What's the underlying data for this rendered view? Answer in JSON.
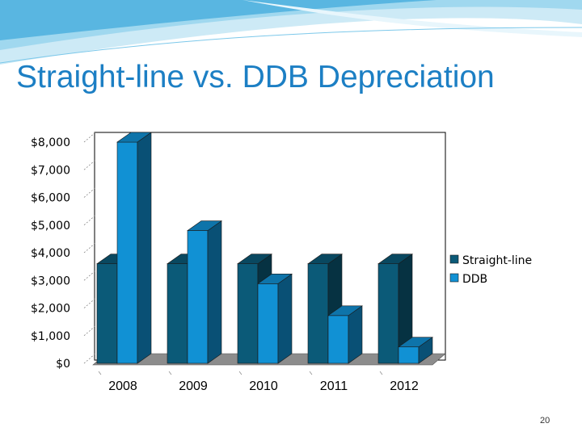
{
  "slide": {
    "title": "Straight-line vs. DDB Depreciation",
    "page_number": "20"
  },
  "colors": {
    "title": "#1c7fc4",
    "straight_line": "#0b5a78",
    "ddb": "#1191d4",
    "floor": "#8c8c8c"
  },
  "chart_data": {
    "type": "bar",
    "style": "3d-clustered-column",
    "categories": [
      "2008",
      "2009",
      "2010",
      "2011",
      "2012"
    ],
    "series": [
      {
        "name": "Straight-line",
        "values": [
          3600,
          3600,
          3600,
          3600,
          3600
        ]
      },
      {
        "name": "DDB",
        "values": [
          8000,
          4800,
          2880,
          1728,
          592
        ]
      }
    ],
    "yticks": [
      "$0",
      "$1,000",
      "$2,000",
      "$3,000",
      "$4,000",
      "$5,000",
      "$6,000",
      "$7,000",
      "$8,000"
    ],
    "ylim": [
      0,
      8000
    ],
    "legend_position": "right",
    "grid": false
  }
}
